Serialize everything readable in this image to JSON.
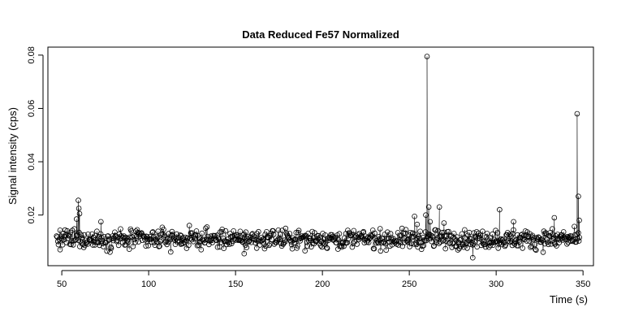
{
  "chart_data": {
    "type": "scatter",
    "title": "Data Reduced Fe57 Normalized",
    "xlabel": "Time (s)",
    "ylabel": "Signal intensity (cps)",
    "xlim": [
      42,
      356
    ],
    "ylim": [
      0.001,
      0.083
    ],
    "xticks": [
      50,
      100,
      150,
      200,
      250,
      300,
      350
    ],
    "yticks": [
      0.02,
      0.04,
      0.06,
      0.08
    ],
    "ytick_labels": [
      "0.02",
      "0.04",
      "0.06",
      "0.08"
    ],
    "marker": "open-circle",
    "drop_lines": true,
    "grid": false,
    "x_range_observed": [
      47,
      348
    ],
    "baseline_level": 0.011,
    "baseline_spread": 0.0035,
    "spikes": [
      {
        "x": 59.5,
        "y": 0.0255
      },
      {
        "x": 59.8,
        "y": 0.0225
      },
      {
        "x": 60.2,
        "y": 0.0205
      },
      {
        "x": 58.5,
        "y": 0.0185
      },
      {
        "x": 72.5,
        "y": 0.0175
      },
      {
        "x": 253.0,
        "y": 0.0195
      },
      {
        "x": 254.5,
        "y": 0.0165
      },
      {
        "x": 259.5,
        "y": 0.02
      },
      {
        "x": 260.2,
        "y": 0.0795
      },
      {
        "x": 261.2,
        "y": 0.023
      },
      {
        "x": 262.0,
        "y": 0.0175
      },
      {
        "x": 267.3,
        "y": 0.023
      },
      {
        "x": 270.0,
        "y": 0.017
      },
      {
        "x": 302.0,
        "y": 0.022
      },
      {
        "x": 310.0,
        "y": 0.0175
      },
      {
        "x": 333.5,
        "y": 0.019
      },
      {
        "x": 346.6,
        "y": 0.058
      },
      {
        "x": 347.3,
        "y": 0.027
      },
      {
        "x": 347.8,
        "y": 0.018
      },
      {
        "x": 286.5,
        "y": 0.004
      },
      {
        "x": 49.0,
        "y": 0.007
      },
      {
        "x": 155.0,
        "y": 0.0055
      }
    ]
  }
}
